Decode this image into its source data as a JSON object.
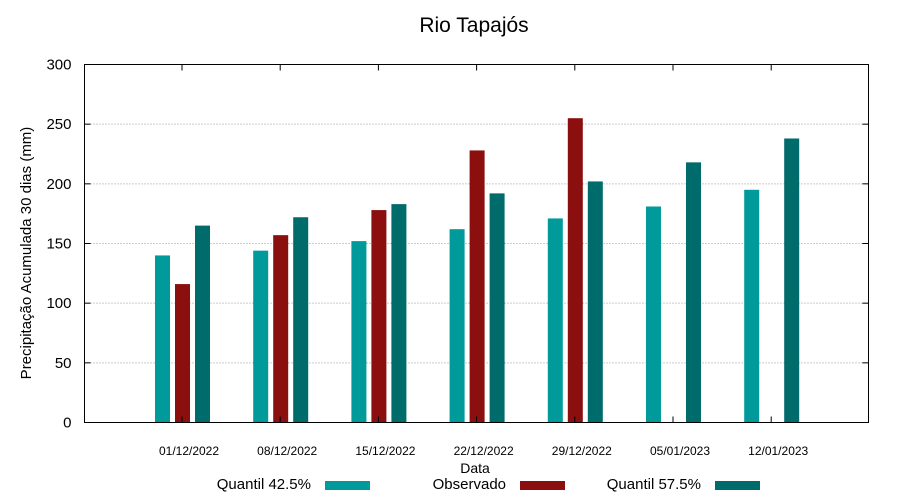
{
  "chart_data": {
    "type": "bar",
    "title": "Rio Tapajós",
    "xlabel": "Data",
    "ylabel": "Precipitação Acumulada 30 dias (mm)",
    "ylim": [
      0,
      300
    ],
    "yticks": [
      0,
      50,
      100,
      150,
      200,
      250,
      300
    ],
    "grid": true,
    "categories": [
      "01/12/2022",
      "08/12/2022",
      "15/12/2022",
      "22/12/2022",
      "29/12/2022",
      "05/01/2023",
      "12/01/2023"
    ],
    "series": [
      {
        "name": "Quantil 42.5%",
        "color": "#009a9a",
        "values": [
          140,
          144,
          152,
          162,
          171,
          181,
          195
        ]
      },
      {
        "name": "Observado",
        "color": "#8b0f0f",
        "values": [
          116,
          157,
          178,
          228,
          255,
          null,
          null
        ]
      },
      {
        "name": "Quantil 57.5%",
        "color": "#006b6b",
        "values": [
          165,
          172,
          183,
          192,
          202,
          218,
          238
        ]
      }
    ],
    "legend_position": "bottom"
  }
}
